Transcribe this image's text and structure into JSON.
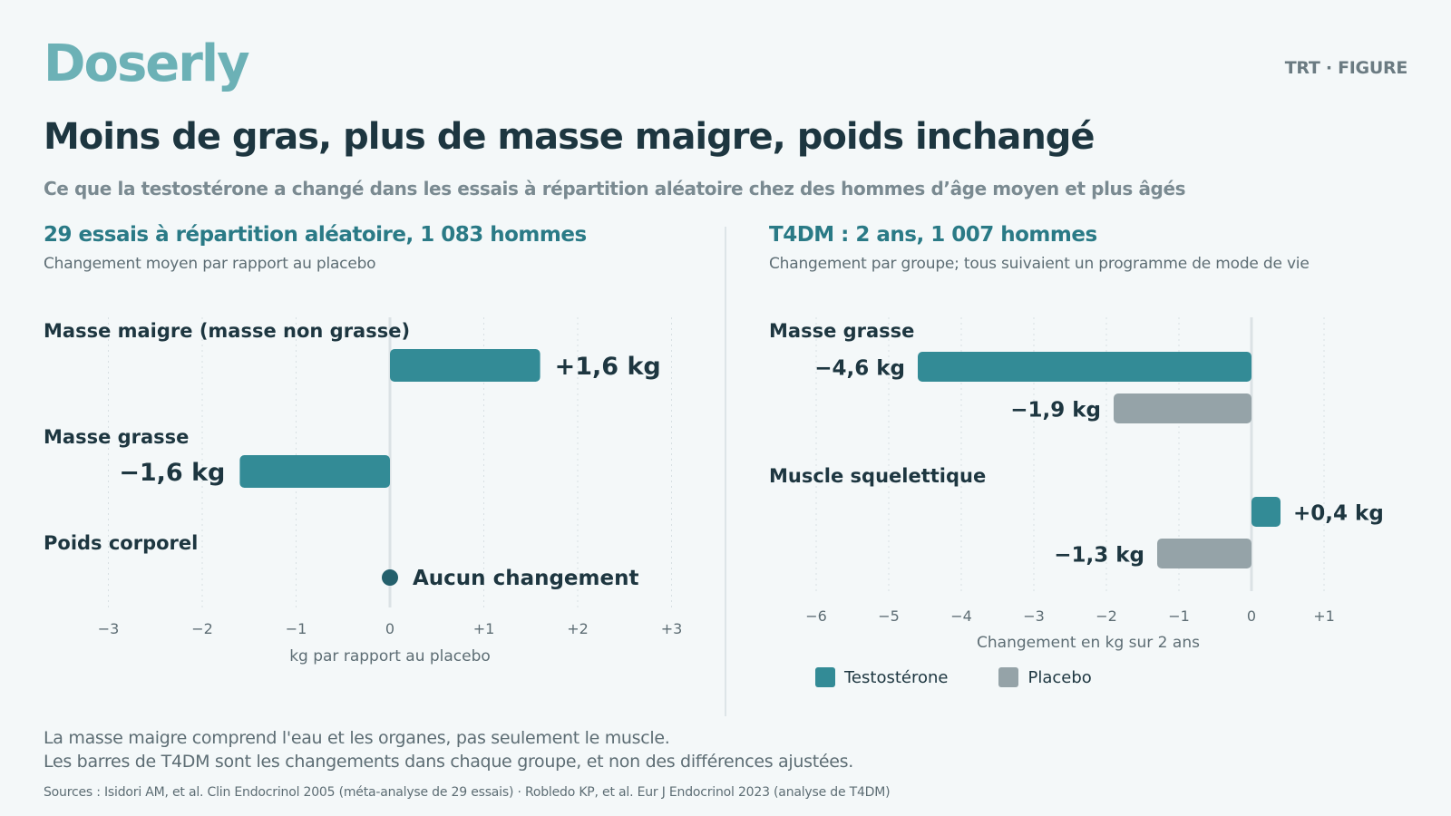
{
  "header": {
    "logo": "Doserly",
    "tag": "TRT · FIGURE",
    "title": "Moins de gras, plus de masse maigre, poids inchangé",
    "subtitle": "Ce que la testostérone a changé dans les essais à répartition aléatoire chez des hommes d’âge moyen et plus âgés"
  },
  "colors": {
    "testosterone": "#338b96",
    "placebo": "#95a3a8",
    "zero_dot": "#24606c",
    "panel_title": "#2a7a86"
  },
  "chart_data": [
    {
      "type": "bar",
      "orientation": "horizontal",
      "title": "29 essais à répartition aléatoire, 1 083 hommes",
      "subtitle": "Changement moyen par rapport au placebo",
      "xlabel": "kg par rapport au placebo",
      "xlim": [
        -3,
        3
      ],
      "xticks": [
        -3,
        -2,
        -1,
        0,
        1,
        2,
        3
      ],
      "xtick_labels": [
        "−3",
        "−2",
        "−1",
        "0",
        "+1",
        "+2",
        "+3"
      ],
      "grid": true,
      "categories": [
        "Masse maigre (masse non grasse)",
        "Masse grasse",
        "Poids corporel"
      ],
      "values": [
        1.6,
        -1.6,
        0
      ],
      "value_labels": [
        "+1,6 kg",
        "−1,6 kg",
        "Aucun changement"
      ]
    },
    {
      "type": "bar",
      "orientation": "horizontal",
      "title": "T4DM : 2 ans, 1 007 hommes",
      "subtitle": "Changement par groupe; tous suivaient un programme de mode de vie",
      "xlabel": "Changement en kg sur 2 ans",
      "xlim": [
        -6,
        1
      ],
      "xticks": [
        -6,
        -5,
        -4,
        -3,
        -2,
        -1,
        0,
        1
      ],
      "xtick_labels": [
        "−6",
        "−5",
        "−4",
        "−3",
        "−2",
        "−1",
        "0",
        "+1"
      ],
      "grid": true,
      "categories": [
        "Masse grasse",
        "Muscle squelettique"
      ],
      "series": [
        {
          "name": "Testostérone",
          "values": [
            -4.6,
            0.4
          ],
          "labels": [
            "−4,6 kg",
            "+0,4 kg"
          ]
        },
        {
          "name": "Placebo",
          "values": [
            -1.9,
            -1.3
          ],
          "labels": [
            "−1,9 kg",
            "−1,3 kg"
          ]
        }
      ],
      "legend": "bottom-left"
    }
  ],
  "footer": {
    "note1": "La masse maigre comprend l'eau et les organes, pas seulement le muscle.",
    "note2": "Les barres de T4DM sont les changements dans chaque groupe, et non des différences ajustées.",
    "sources": "Sources : Isidori AM, et al. Clin Endocrinol 2005 (méta-analyse de 29 essais) · Robledo KP, et al. Eur J Endocrinol 2023 (analyse de T4DM)"
  }
}
